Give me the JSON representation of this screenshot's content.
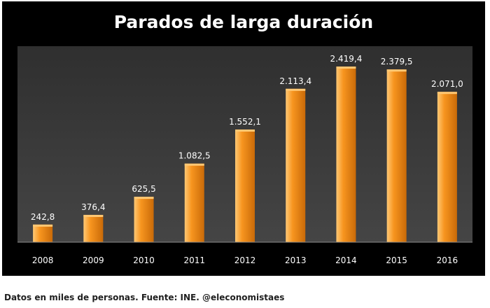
{
  "chart_data": {
    "type": "bar",
    "title": "Parados de larga duración",
    "categories": [
      "2008",
      "2009",
      "2010",
      "2011",
      "2012",
      "2013",
      "2014",
      "2015",
      "2016"
    ],
    "values": [
      242.8,
      376.4,
      625.5,
      1082.5,
      1552.1,
      2113.4,
      2419.4,
      2379.5,
      2071.0
    ],
    "value_labels": [
      "242,8",
      "376,4",
      "625,5",
      "1.082,5",
      "1.552,1",
      "2.113,4",
      "2.419,4",
      "2.379,5",
      "2.071,0"
    ],
    "xlabel": "",
    "ylabel": "",
    "ylim": [
      0,
      2700
    ],
    "grid": false,
    "legend": "none",
    "colors": {
      "background": "#000000",
      "plot_area": "#3b3b3b",
      "bar_light": "#ffc874",
      "bar_mid": "#f7951f",
      "bar_dark": "#c96a08",
      "text": "#ffffff",
      "axis_line": "#8a8a8a"
    }
  },
  "footnote": "Datos en miles de personas. Fuente: INE. @eleconomistaes"
}
